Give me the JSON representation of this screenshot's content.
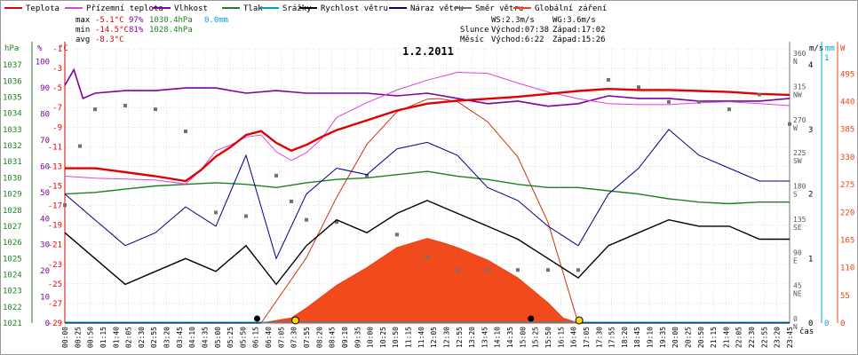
{
  "legend": [
    {
      "label": "Teplota",
      "color": "#e00000"
    },
    {
      "label": "Přízemní teplota",
      "color": "#e040e0"
    },
    {
      "label": "Vlhkost",
      "color": "#8000a0"
    },
    {
      "label": "Tlak",
      "color": "#208020"
    },
    {
      "label": "Srážky",
      "color": "#00a0e0"
    },
    {
      "label": "Rychlost větru",
      "color": "#000000"
    },
    {
      "label": "Náraz větru",
      "color": "#000080"
    },
    {
      "label": "Směr větru",
      "color": "#707070"
    },
    {
      "label": "Globální záření",
      "color": "#f04010"
    }
  ],
  "stats": {
    "max_label": "max",
    "max_temp": "-5.1°C",
    "max_hum": "97%",
    "max_press": "1030.4hPa",
    "max_rain": "0.0mm",
    "min_label": "min",
    "min_temp": "-14.5°C",
    "min_hum": "81%",
    "min_press": "1028.4hPa",
    "avg_label": "avg",
    "avg_temp": "-8.3°C"
  },
  "wind_info": {
    "ws": "WS:2.3m/s",
    "wg": "WG:3.6m/s",
    "sun_label": "Slunce",
    "sun_rise": "Východ:07:38",
    "sun_set": "Západ:17:02",
    "moon_label": "Měsíc",
    "moon_rise": "Východ:6:22",
    "moon_set": "Západ:15:26"
  },
  "title": "1.2.2011",
  "axis_units": {
    "hpa": "hPa",
    "pct": "%",
    "degc": "°C",
    "ms": "m/s",
    "mm": "mm",
    "w": "W",
    "time": "čas"
  },
  "colors": {
    "temp": "#e00000",
    "ground": "#e040e0",
    "hum": "#8000a0",
    "press": "#208020",
    "rain": "#00a0e0",
    "wind": "#000000",
    "gust": "#000080",
    "dir": "#707070",
    "rad": "#f04010",
    "grid": "#cccccc"
  },
  "chart_data": {
    "type": "line",
    "title": "1.2.2011",
    "xlabel": "čas",
    "x_ticks": [
      "00:00",
      "00:25",
      "00:50",
      "01:15",
      "01:40",
      "02:05",
      "02:30",
      "02:55",
      "03:20",
      "03:45",
      "04:10",
      "04:35",
      "05:00",
      "05:25",
      "05:50",
      "06:15",
      "06:40",
      "07:05",
      "07:30",
      "07:55",
      "08:20",
      "08:45",
      "09:10",
      "09:35",
      "10:00",
      "10:25",
      "10:50",
      "11:15",
      "11:40",
      "12:05",
      "12:30",
      "12:55",
      "13:20",
      "13:45",
      "14:10",
      "14:35",
      "15:00",
      "15:25",
      "15:50",
      "16:15",
      "16:40",
      "17:05",
      "17:30",
      "17:55",
      "18:20",
      "18:45",
      "19:10",
      "19:35",
      "20:00",
      "20:25",
      "20:50",
      "21:15",
      "21:40",
      "22:05",
      "22:30",
      "22:55",
      "23:20",
      "23:45"
    ],
    "axes": {
      "pressure_hpa": {
        "ylim": [
          1021,
          1038
        ],
        "ticks": [
          1021,
          1022,
          1023,
          1024,
          1025,
          1026,
          1027,
          1028,
          1029,
          1030,
          1031,
          1032,
          1033,
          1034,
          1035,
          1036,
          1037
        ]
      },
      "humidity_pct": {
        "ylim": [
          0,
          105
        ],
        "ticks": [
          0,
          10,
          20,
          30,
          40,
          50,
          60,
          70,
          80,
          90,
          100
        ]
      },
      "temperature_c": {
        "ylim": [
          -29,
          -1
        ],
        "ticks": [
          -29,
          -27,
          -25,
          -23,
          -21,
          -19,
          -17,
          -15,
          -13,
          -11,
          -9,
          -7,
          -5,
          -3,
          -1
        ]
      },
      "wind_direction": {
        "ticks": [
          {
            "deg": 0,
            "label": "N"
          },
          {
            "deg": 45,
            "label": "NE"
          },
          {
            "deg": 90,
            "label": "E"
          },
          {
            "deg": 135,
            "label": "SE"
          },
          {
            "deg": 180,
            "label": "S"
          },
          {
            "deg": 225,
            "label": "SW"
          },
          {
            "deg": 270,
            "label": "W"
          },
          {
            "deg": 315,
            "label": "NW"
          },
          {
            "deg": 360,
            "label": "N"
          }
        ]
      },
      "wind_speed_ms": {
        "ylim": [
          0,
          4.25
        ],
        "ticks": [
          0,
          1,
          2,
          3,
          4
        ]
      },
      "rain_mm": {
        "ticks": [
          0,
          1
        ]
      },
      "radiation_w": {
        "ylim": [
          0,
          545
        ],
        "ticks": [
          0,
          55,
          110,
          165,
          220,
          275,
          330,
          385,
          440,
          495
        ]
      }
    },
    "series": [
      {
        "name": "Teplota",
        "unit": "°C",
        "x": [
          0,
          1,
          2,
          3,
          4,
          4.5,
          5,
          5.5,
          6,
          6.5,
          7,
          7.5,
          8,
          8.5,
          9,
          10,
          11,
          12,
          13,
          14,
          15,
          16,
          17,
          18,
          19,
          20,
          21,
          22,
          23,
          24
        ],
        "values": [
          -13.2,
          -13.2,
          -13.6,
          -14.0,
          -14.5,
          -13.4,
          -12.0,
          -11.0,
          -9.8,
          -9.4,
          -10.6,
          -11.4,
          -10.8,
          -10.0,
          -9.3,
          -8.3,
          -7.3,
          -6.6,
          -6.3,
          -6.1,
          -5.9,
          -5.6,
          -5.3,
          -5.1,
          -5.2,
          -5.2,
          -5.3,
          -5.4,
          -5.6,
          -5.7
        ]
      },
      {
        "name": "Přízemní teplota",
        "unit": "°C",
        "x": [
          0,
          1,
          2,
          3,
          4,
          4.5,
          5,
          5.5,
          6,
          6.5,
          7,
          7.5,
          8,
          8.5,
          9,
          10,
          11,
          12,
          13,
          14,
          15,
          16,
          17,
          18,
          19,
          20,
          21,
          22,
          23,
          24
        ],
        "values": [
          -14.0,
          -14.2,
          -14.3,
          -14.4,
          -14.8,
          -13.4,
          -11.4,
          -10.8,
          -10.0,
          -9.8,
          -11.5,
          -12.4,
          -11.6,
          -10.2,
          -8.0,
          -6.5,
          -5.2,
          -4.2,
          -3.4,
          -3.5,
          -4.5,
          -5.4,
          -6.1,
          -6.6,
          -6.7,
          -6.7,
          -6.5,
          -6.4,
          -6.6,
          -6.8
        ]
      },
      {
        "name": "Vlhkost",
        "unit": "%",
        "x": [
          0,
          0.3,
          0.6,
          1,
          2,
          3,
          4,
          5,
          6,
          7,
          8,
          9,
          10,
          11,
          12,
          13,
          14,
          15,
          16,
          17,
          18,
          19,
          20,
          21,
          22,
          23,
          24
        ],
        "values": [
          91,
          97,
          86,
          88,
          89,
          89,
          90,
          90,
          88,
          89,
          88,
          88,
          88,
          87,
          88,
          86,
          84,
          85,
          83,
          84,
          87,
          86,
          86,
          85,
          85,
          85,
          86
        ]
      },
      {
        "name": "Tlak",
        "unit": "hPa",
        "x": [
          0,
          1,
          2,
          3,
          4,
          5,
          6,
          7,
          8,
          9,
          10,
          11,
          12,
          13,
          14,
          15,
          16,
          17,
          18,
          19,
          20,
          21,
          22,
          23,
          24
        ],
        "values": [
          1029.0,
          1029.1,
          1029.3,
          1029.5,
          1029.6,
          1029.7,
          1029.6,
          1029.4,
          1029.7,
          1029.9,
          1030.0,
          1030.2,
          1030.4,
          1030.1,
          1029.9,
          1029.6,
          1029.4,
          1029.4,
          1029.2,
          1029.0,
          1028.7,
          1028.5,
          1028.4,
          1028.5,
          1028.5
        ]
      },
      {
        "name": "Srážky",
        "unit": "mm",
        "x": [
          0,
          24
        ],
        "values": [
          0.0,
          0.0
        ]
      },
      {
        "name": "Rychlost větru",
        "unit": "m/s",
        "x": [
          0,
          1,
          2,
          3,
          4,
          5,
          6,
          7,
          8,
          9,
          10,
          11,
          12,
          13,
          14,
          15,
          16,
          17,
          18,
          19,
          20,
          21,
          22,
          23,
          24
        ],
        "values": [
          1.4,
          1.0,
          0.6,
          0.8,
          1.0,
          0.8,
          1.2,
          0.6,
          1.2,
          1.6,
          1.4,
          1.7,
          1.9,
          1.7,
          1.5,
          1.3,
          1.0,
          0.7,
          1.2,
          1.4,
          1.6,
          1.5,
          1.5,
          1.3,
          1.3
        ]
      },
      {
        "name": "Náraz větru",
        "unit": "m/s",
        "x": [
          0,
          1,
          2,
          3,
          4,
          5,
          6,
          7,
          8,
          9,
          10,
          11,
          12,
          13,
          14,
          15,
          16,
          17,
          18,
          19,
          20,
          21,
          22,
          23,
          24
        ],
        "values": [
          2.0,
          1.6,
          1.2,
          1.4,
          1.8,
          1.5,
          2.6,
          1.0,
          2.0,
          2.4,
          2.3,
          2.7,
          2.8,
          2.6,
          2.1,
          1.9,
          1.5,
          1.2,
          2.0,
          2.4,
          3.0,
          2.6,
          2.4,
          2.2,
          2.2
        ]
      },
      {
        "name": "Směr větru",
        "unit": "°",
        "x": [
          0,
          0.5,
          1,
          2,
          3,
          4,
          5,
          6,
          7,
          7.5,
          8,
          9,
          10,
          11,
          12,
          13,
          14,
          15,
          16,
          17,
          18,
          19,
          20,
          21,
          22,
          23,
          24
        ],
        "values": [
          160,
          240,
          290,
          295,
          290,
          260,
          150,
          145,
          200,
          165,
          140,
          137,
          200,
          120,
          90,
          72,
          72,
          72,
          72,
          72,
          330,
          320,
          300,
          300,
          290,
          310,
          270
        ]
      },
      {
        "name": "Globální záření",
        "unit": "W",
        "x": [
          6.5,
          7.5,
          8,
          9,
          10,
          11,
          12,
          12.5,
          13,
          14,
          15,
          16,
          16.5,
          17
        ],
        "values": [
          0,
          10,
          30,
          75,
          110,
          150,
          168,
          160,
          150,
          125,
          90,
          40,
          10,
          0
        ]
      }
    ],
    "theoretical_radiation": {
      "x": [
        6.5,
        8,
        9,
        10,
        11,
        12,
        12.4,
        13,
        14,
        15,
        16,
        17
      ],
      "values": [
        0,
        130,
        250,
        355,
        420,
        445,
        446,
        440,
        400,
        330,
        200,
        0
      ]
    },
    "markers": {
      "sunrise": "07:38",
      "sunset": "17:02",
      "moonrise": "6:22",
      "moonset": "15:26"
    }
  }
}
